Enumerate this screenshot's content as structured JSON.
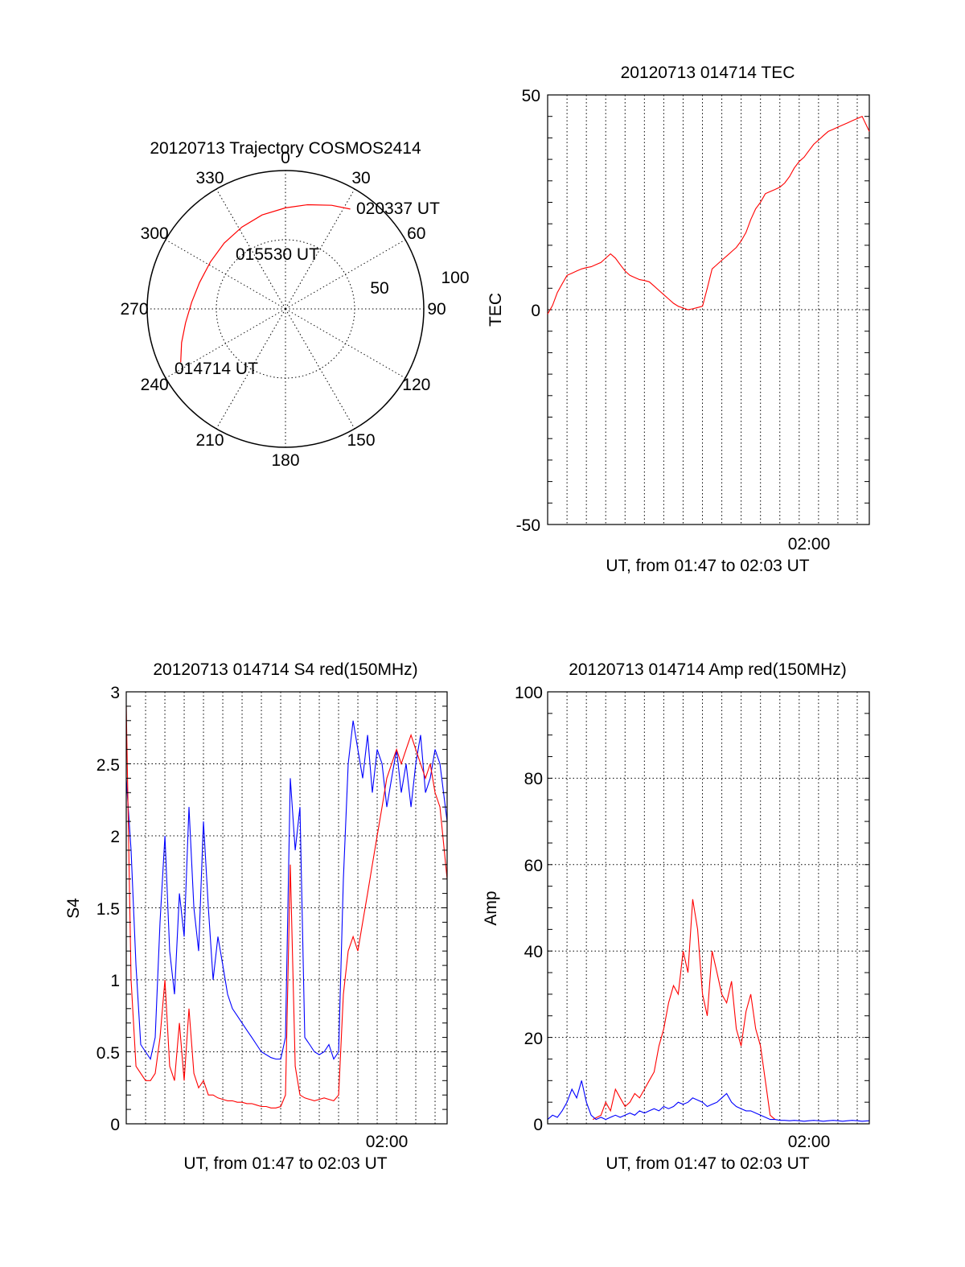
{
  "chart_data": [
    {
      "type": "polar",
      "title": "20120713 Trajectory COSMOS2414",
      "angle_labels": [
        "0",
        "30",
        "60",
        "90",
        "120",
        "150",
        "180",
        "210",
        "240",
        "270",
        "300",
        "330"
      ],
      "radius_labels": [
        "50",
        "100"
      ],
      "rlim": [
        0,
        100
      ],
      "grid": true,
      "series": [
        {
          "color": "#ff0000",
          "points": [
            {
              "az": 243,
              "r": 85
            },
            {
              "az": 252,
              "r": 79
            },
            {
              "az": 262,
              "r": 73
            },
            {
              "az": 274,
              "r": 68
            },
            {
              "az": 287,
              "r": 65
            },
            {
              "az": 302,
              "r": 64
            },
            {
              "az": 317,
              "r": 65
            },
            {
              "az": 332,
              "r": 67
            },
            {
              "az": 346,
              "r": 70
            },
            {
              "az": 0,
              "r": 73
            },
            {
              "az": 12,
              "r": 77
            },
            {
              "az": 24,
              "r": 82
            },
            {
              "az": 33,
              "r": 86
            }
          ]
        }
      ],
      "annotations": [
        "020337 UT",
        "015530 UT",
        "014714 UT"
      ]
    },
    {
      "type": "line",
      "title": "20120713 014714 TEC",
      "xlabel": "UT, from 01:47 to 02:03 UT",
      "ylabel": "TEC",
      "xlim": [
        1.7833,
        2.0604
      ],
      "ylim": [
        -50,
        50
      ],
      "x_ticks": [
        {
          "value": 2.0,
          "label": "02:00"
        }
      ],
      "y_ticks": [
        "50",
        "0",
        "-50"
      ],
      "grid": true,
      "series": [
        {
          "color": "#ff0000",
          "x": [
            1.7833,
            1.7875,
            1.7917,
            1.7958,
            1.8,
            1.8042,
            1.8083,
            1.8125,
            1.8167,
            1.8208,
            1.825,
            1.8292,
            1.8333,
            1.8375,
            1.8417,
            1.8458,
            1.85,
            1.8542,
            1.8583,
            1.8625,
            1.8667,
            1.8708,
            1.875,
            1.8792,
            1.8833,
            1.8875,
            1.8917,
            1.8958,
            1.9,
            1.9042,
            1.9083,
            1.9125,
            1.9167,
            1.9208,
            1.925,
            1.9292,
            1.9333,
            1.9375,
            1.9417,
            1.9458,
            1.95,
            1.9542,
            1.9583,
            1.9625,
            1.9667,
            1.9708,
            1.975,
            1.9792,
            1.9833,
            1.9875,
            1.9917,
            1.9958,
            2.0,
            2.0042,
            2.0083,
            2.0125,
            2.0167,
            2.0208,
            2.025,
            2.0292,
            2.0333,
            2.0375,
            2.0417,
            2.0458,
            2.05,
            2.0542,
            2.0604
          ],
          "y": [
            -1,
            1,
            4,
            6,
            8,
            8.5,
            9,
            9.5,
            9.8,
            10,
            10.5,
            11,
            12,
            13,
            12,
            10.5,
            9,
            8,
            7.5,
            7,
            6.8,
            6.5,
            5.5,
            4.5,
            3.5,
            2.5,
            1.5,
            0.8,
            0.4,
            0,
            0.2,
            0.5,
            0.8,
            5,
            9.5,
            10.5,
            11.5,
            12.5,
            13.5,
            14.5,
            16,
            18,
            21,
            23.5,
            25,
            27,
            27.5,
            28,
            28.5,
            29.5,
            31,
            33,
            34.5,
            35.5,
            37,
            38.5,
            39.5,
            40.5,
            41.5,
            42,
            42.5,
            43,
            43.5,
            44,
            44.5,
            45,
            41.5
          ]
        }
      ]
    },
    {
      "type": "line",
      "title": "20120713 014714 S4 red(150MHz)",
      "xlabel": "UT, from 01:47 to 02:03 UT",
      "ylabel": "S4",
      "xlim": [
        1.7833,
        2.0604
      ],
      "ylim": [
        0,
        3
      ],
      "x_ticks": [
        {
          "value": 2.0,
          "label": "02:00"
        }
      ],
      "y_ticks": [
        "0",
        "0.5",
        "1",
        "1.5",
        "2",
        "2.5",
        "3"
      ],
      "grid": true,
      "series": [
        {
          "color": "#0000ff",
          "x": [
            1.7833,
            1.7875,
            1.7917,
            1.7958,
            1.8,
            1.8042,
            1.8083,
            1.8125,
            1.8167,
            1.8208,
            1.825,
            1.8292,
            1.8333,
            1.8375,
            1.8417,
            1.8458,
            1.85,
            1.8542,
            1.8583,
            1.8625,
            1.8667,
            1.8708,
            1.875,
            1.8792,
            1.8833,
            1.8875,
            1.8917,
            1.8958,
            1.9,
            1.9042,
            1.9083,
            1.9125,
            1.9167,
            1.9208,
            1.925,
            1.9292,
            1.9333,
            1.9375,
            1.9417,
            1.9458,
            1.95,
            1.9542,
            1.9583,
            1.9625,
            1.9667,
            1.9708,
            1.975,
            1.9792,
            1.9833,
            1.9875,
            1.9917,
            1.9958,
            2.0,
            2.0042,
            2.0083,
            2.0125,
            2.0167,
            2.0208,
            2.025,
            2.0292,
            2.0333,
            2.0375,
            2.0417,
            2.0458,
            2.05,
            2.0542,
            2.0604
          ],
          "y": [
            2.4,
            1.9,
            1.1,
            0.55,
            0.5,
            0.45,
            0.6,
            1.4,
            2.0,
            1.2,
            0.9,
            1.6,
            1.3,
            2.2,
            1.5,
            1.2,
            2.1,
            1.5,
            1.0,
            1.3,
            1.1,
            0.9,
            0.8,
            0.75,
            0.7,
            0.65,
            0.6,
            0.55,
            0.5,
            0.48,
            0.46,
            0.45,
            0.45,
            0.6,
            2.4,
            1.9,
            2.2,
            0.6,
            0.55,
            0.5,
            0.48,
            0.5,
            0.55,
            0.45,
            0.5,
            1.7,
            2.5,
            2.8,
            2.6,
            2.4,
            2.7,
            2.3,
            2.6,
            2.5,
            2.2,
            2.4,
            2.6,
            2.3,
            2.5,
            2.2,
            2.5,
            2.7,
            2.3,
            2.4,
            2.6,
            2.5,
            2.1
          ]
        },
        {
          "color": "#ff0000",
          "x": [
            1.7833,
            1.7875,
            1.7917,
            1.7958,
            1.8,
            1.8042,
            1.8083,
            1.8125,
            1.8167,
            1.8208,
            1.825,
            1.8292,
            1.8333,
            1.8375,
            1.8417,
            1.8458,
            1.85,
            1.8542,
            1.8583,
            1.8625,
            1.8667,
            1.8708,
            1.875,
            1.8792,
            1.8833,
            1.8875,
            1.8917,
            1.8958,
            1.9,
            1.9042,
            1.9083,
            1.9125,
            1.9167,
            1.9208,
            1.925,
            1.9292,
            1.9333,
            1.9375,
            1.9417,
            1.9458,
            1.95,
            1.9542,
            1.9583,
            1.9625,
            1.9667,
            1.9708,
            1.975,
            1.9792,
            1.9833,
            1.9875,
            1.9917,
            1.9958,
            2.0,
            2.0042,
            2.0083,
            2.0125,
            2.0167,
            2.0208,
            2.025,
            2.0292,
            2.0333,
            2.0375,
            2.0417,
            2.0458,
            2.05,
            2.0542,
            2.0604
          ],
          "y": [
            2.9,
            1.0,
            0.4,
            0.35,
            0.3,
            0.3,
            0.35,
            0.6,
            1.0,
            0.4,
            0.3,
            0.7,
            0.3,
            0.8,
            0.35,
            0.25,
            0.3,
            0.2,
            0.2,
            0.18,
            0.17,
            0.16,
            0.16,
            0.15,
            0.15,
            0.14,
            0.14,
            0.13,
            0.12,
            0.12,
            0.11,
            0.11,
            0.12,
            0.2,
            1.8,
            0.4,
            0.2,
            0.18,
            0.17,
            0.16,
            0.17,
            0.18,
            0.17,
            0.16,
            0.2,
            0.9,
            1.2,
            1.3,
            1.2,
            1.4,
            1.6,
            1.8,
            2.0,
            2.2,
            2.4,
            2.5,
            2.6,
            2.5,
            2.6,
            2.7,
            2.6,
            2.5,
            2.4,
            2.5,
            2.3,
            2.2,
            1.7
          ]
        }
      ]
    },
    {
      "type": "line",
      "title": "20120713 014714 Amp red(150MHz)",
      "xlabel": "UT, from 01:47 to 02:03 UT",
      "ylabel": "Amp",
      "xlim": [
        1.7833,
        2.0604
      ],
      "ylim": [
        0,
        100
      ],
      "x_ticks": [
        {
          "value": 2.0,
          "label": "02:00"
        }
      ],
      "y_ticks": [
        "0",
        "20",
        "40",
        "60",
        "80",
        "100"
      ],
      "grid": true,
      "series": [
        {
          "color": "#ff0000",
          "x": [
            1.8222,
            1.8292,
            1.8333,
            1.8375,
            1.8417,
            1.8458,
            1.85,
            1.8542,
            1.8583,
            1.8625,
            1.8667,
            1.8708,
            1.875,
            1.8792,
            1.8833,
            1.8875,
            1.8917,
            1.8958,
            1.9,
            1.9042,
            1.9083,
            1.9125,
            1.9167,
            1.9208,
            1.925,
            1.9292,
            1.9333,
            1.9375,
            1.9417,
            1.9458,
            1.95,
            1.9542,
            1.9583,
            1.9625,
            1.9667,
            1.9708,
            1.975,
            1.9792
          ],
          "y": [
            1,
            2,
            5,
            3,
            8,
            6,
            4,
            5,
            7,
            6,
            8,
            10,
            12,
            18,
            22,
            28,
            32,
            30,
            40,
            35,
            52,
            45,
            30,
            25,
            40,
            35,
            30,
            28,
            33,
            22,
            18,
            26,
            30,
            22,
            18,
            10,
            2,
            1
          ]
        },
        {
          "color": "#0000ff",
          "x": [
            1.7833,
            1.7875,
            1.7917,
            1.7958,
            1.8,
            1.8042,
            1.8083,
            1.8125,
            1.8167,
            1.8208,
            1.825,
            1.8292,
            1.8333,
            1.8375,
            1.8417,
            1.8458,
            1.85,
            1.8542,
            1.8583,
            1.8625,
            1.8667,
            1.8708,
            1.875,
            1.8792,
            1.8833,
            1.8875,
            1.8917,
            1.8958,
            1.9,
            1.9042,
            1.9083,
            1.9125,
            1.9167,
            1.9208,
            1.925,
            1.9292,
            1.9333,
            1.9375,
            1.9417,
            1.9458,
            1.95,
            1.9542,
            1.9583,
            1.9625,
            1.9667,
            1.9708,
            1.975,
            1.9792,
            1.9833,
            1.9875,
            1.9917,
            1.9958,
            2.0,
            2.0042,
            2.0083,
            2.0125,
            2.0167,
            2.0208,
            2.025,
            2.0292,
            2.0333,
            2.0375,
            2.0417,
            2.0458,
            2.05,
            2.0542,
            2.0604
          ],
          "y": [
            1,
            2,
            1.5,
            3,
            5,
            8,
            6,
            10,
            5,
            2,
            1,
            1.5,
            1,
            1.5,
            2,
            1.5,
            2,
            2.5,
            2,
            3,
            2.5,
            3,
            3.5,
            3,
            4,
            3.5,
            4,
            5,
            4.5,
            5,
            6,
            5.5,
            5,
            4,
            4.5,
            5,
            6,
            7,
            5,
            4,
            3.5,
            3,
            3,
            2.5,
            2,
            1.5,
            1,
            1,
            0.8,
            0.8,
            0.7,
            0.8,
            0.7,
            0.6,
            0.7,
            0.8,
            0.7,
            0.6,
            0.7,
            0.8,
            0.7,
            0.6,
            0.7,
            0.8,
            0.7,
            0.6,
            0.7
          ]
        }
      ]
    }
  ]
}
